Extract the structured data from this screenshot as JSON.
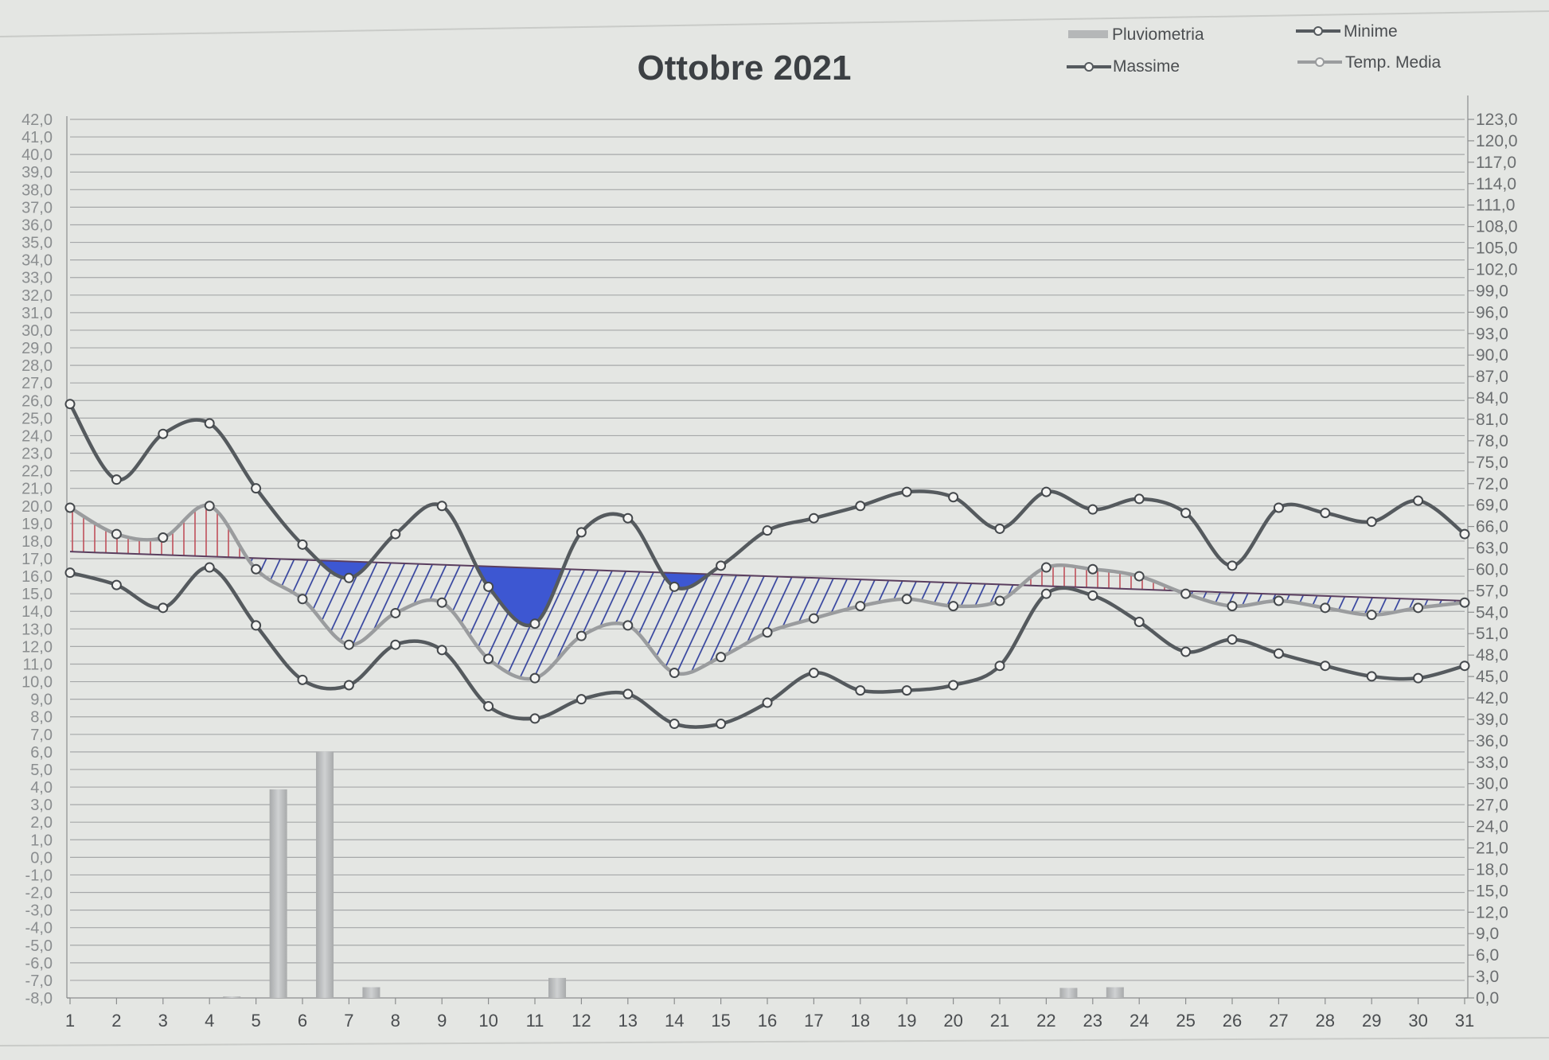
{
  "chart_data": {
    "type": "line",
    "title": "Ottobre 2021",
    "x": [
      1,
      2,
      3,
      4,
      5,
      6,
      7,
      8,
      9,
      10,
      11,
      12,
      13,
      14,
      15,
      16,
      17,
      18,
      19,
      20,
      21,
      22,
      23,
      24,
      25,
      26,
      27,
      28,
      29,
      30,
      31
    ],
    "x_tick_labels": [
      "1",
      "2",
      "3",
      "4",
      "5",
      "6",
      "7",
      "8",
      "9",
      "10",
      "11",
      "12",
      "13",
      "14",
      "15",
      "16",
      "17",
      "18",
      "19",
      "20",
      "21",
      "22",
      "23",
      "24",
      "25",
      "26",
      "27",
      "28",
      "29",
      "30",
      "31"
    ],
    "y_left": {
      "range": [
        -8.0,
        42.0
      ],
      "tick_labels": [
        "42,0",
        "41,0",
        "40,0",
        "39,0",
        "38,0",
        "37,0",
        "36,0",
        "35,0",
        "34,0",
        "33,0",
        "32,0",
        "31,0",
        "30,0",
        "29,0",
        "28,0",
        "27,0",
        "26,0",
        "25,0",
        "24,0",
        "23,0",
        "22,0",
        "21,0",
        "20,0",
        "19,0",
        "18,0",
        "17,0",
        "16,0",
        "15,0",
        "14,0",
        "13,0",
        "12,0",
        "11,0",
        "10,0",
        "9,0",
        "8,0",
        "7,0",
        "6,0",
        "5,0",
        "4,0",
        "3,0",
        "2,0",
        "1,0",
        "0,0",
        "-1,0",
        "-2,0",
        "-3,0",
        "-4,0",
        "-5,0",
        "-6,0",
        "-7,0",
        "-8,0"
      ]
    },
    "y_right": {
      "range": [
        0.0,
        123.0
      ],
      "tick_labels": [
        "123,0",
        "120,0",
        "117,0",
        "114,0",
        "111,0",
        "108,0",
        "105,0",
        "102,0",
        "99,0",
        "96,0",
        "93,0",
        "90,0",
        "87,0",
        "84,0",
        "81,0",
        "78,0",
        "75,0",
        "72,0",
        "69,0",
        "66,0",
        "63,0",
        "60,0",
        "57,0",
        "54,0",
        "51,0",
        "48,0",
        "45,0",
        "42,0",
        "39,0",
        "36,0",
        "33,0",
        "30,0",
        "27,0",
        "24,0",
        "21,0",
        "18,0",
        "15,0",
        "12,0",
        "9,0",
        "6,0",
        "3,0",
        "0,0"
      ]
    },
    "grid": true,
    "legend_position": "top-right",
    "series": [
      {
        "name": "Massime",
        "axis": "left",
        "color": "#555a5e",
        "values": [
          25.8,
          21.5,
          24.1,
          24.7,
          21.0,
          17.8,
          15.9,
          18.4,
          20.0,
          15.4,
          13.3,
          18.5,
          19.3,
          15.4,
          16.6,
          18.6,
          19.3,
          20.0,
          20.8,
          20.5,
          18.7,
          20.8,
          19.8,
          20.4,
          19.6,
          16.6,
          19.9,
          19.6,
          19.1,
          20.3,
          18.4
        ]
      },
      {
        "name": "Minime",
        "axis": "left",
        "color": "#555a5e",
        "values": [
          16.2,
          15.5,
          14.2,
          16.5,
          13.2,
          10.1,
          9.8,
          12.1,
          11.8,
          8.6,
          7.9,
          9.0,
          9.3,
          7.6,
          7.6,
          8.8,
          10.5,
          9.5,
          9.5,
          9.8,
          10.9,
          15.0,
          14.9,
          13.4,
          11.7,
          12.4,
          11.6,
          10.9,
          10.3,
          10.2,
          10.9
        ]
      },
      {
        "name": "Temp. Media",
        "axis": "left",
        "color": "#9a9c9e",
        "values": [
          19.9,
          18.4,
          18.2,
          20.0,
          16.4,
          14.7,
          12.1,
          13.9,
          14.5,
          11.3,
          10.2,
          12.6,
          13.2,
          10.5,
          11.4,
          12.8,
          13.6,
          14.3,
          14.7,
          14.3,
          14.6,
          16.5,
          16.4,
          16.0,
          15.0,
          14.3,
          14.6,
          14.2,
          13.8,
          14.2,
          14.5
        ]
      },
      {
        "name": "Pluviometria",
        "axis": "right",
        "type": "bar",
        "color": "#b9bbbc",
        "values": [
          0,
          0,
          0,
          0.2,
          29.2,
          34.5,
          1.5,
          0,
          0,
          0,
          2.8,
          0,
          0,
          0,
          0,
          0,
          0,
          0,
          0,
          0,
          0,
          1.4,
          1.5,
          0,
          0,
          0,
          0,
          0,
          0,
          0,
          0
        ]
      }
    ],
    "legend": [
      "Pluviometria",
      "Minime",
      "Massime",
      "Temp. Media"
    ],
    "trend_line": {
      "axis": "left",
      "start": 17.4,
      "end": 14.6
    },
    "colors": {
      "above_trend_hatch": "#c0505a",
      "below_trend_hatch": "#2a3a9a",
      "below_trend_fill": "#3d57d2"
    }
  }
}
